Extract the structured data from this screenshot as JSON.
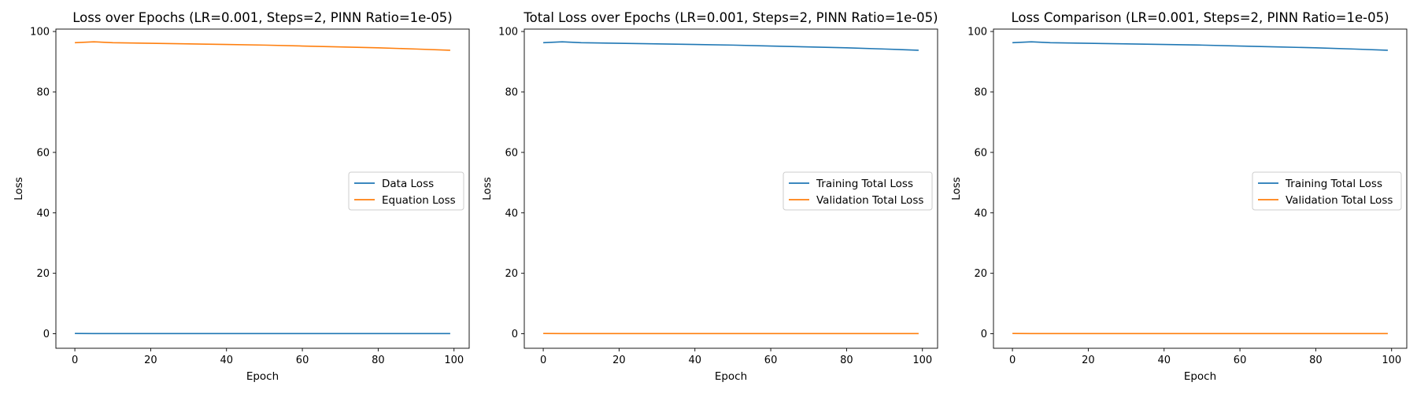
{
  "chart_data": [
    {
      "type": "line",
      "title": "Loss over Epochs (LR=0.001, Steps=2, PINN Ratio=1e-05)",
      "xlabel": "Epoch",
      "ylabel": "Loss",
      "xlim": [
        -5,
        104
      ],
      "ylim": [
        -4.8,
        100.8
      ],
      "xticks": [
        0,
        20,
        40,
        60,
        80,
        100
      ],
      "yticks": [
        0,
        20,
        40,
        60,
        80,
        100
      ],
      "grid": false,
      "legend": "center-right",
      "x": [
        0,
        5,
        10,
        20,
        30,
        40,
        50,
        60,
        70,
        80,
        90,
        99
      ],
      "series": [
        {
          "name": "Data Loss",
          "color": "#1f77b4",
          "values": [
            0.1,
            0.05,
            0.05,
            0.05,
            0.05,
            0.05,
            0.05,
            0.05,
            0.05,
            0.05,
            0.05,
            0.05
          ]
        },
        {
          "name": "Equation Loss",
          "color": "#ff7f0e",
          "values": [
            96.3,
            96.6,
            96.3,
            96.1,
            95.9,
            95.7,
            95.5,
            95.2,
            94.9,
            94.6,
            94.2,
            93.8
          ]
        }
      ]
    },
    {
      "type": "line",
      "title": "Total Loss over Epochs (LR=0.001, Steps=2, PINN Ratio=1e-05)",
      "xlabel": "Epoch",
      "ylabel": "Loss",
      "xlim": [
        -5,
        104
      ],
      "ylim": [
        -4.8,
        100.8
      ],
      "xticks": [
        0,
        20,
        40,
        60,
        80,
        100
      ],
      "yticks": [
        0,
        20,
        40,
        60,
        80,
        100
      ],
      "grid": false,
      "legend": "center-right",
      "x": [
        0,
        5,
        10,
        20,
        30,
        40,
        50,
        60,
        70,
        80,
        90,
        99
      ],
      "series": [
        {
          "name": "Training Total Loss",
          "color": "#1f77b4",
          "values": [
            96.3,
            96.6,
            96.3,
            96.1,
            95.9,
            95.7,
            95.5,
            95.2,
            94.9,
            94.6,
            94.2,
            93.8
          ]
        },
        {
          "name": "Validation Total Loss",
          "color": "#ff7f0e",
          "values": [
            0.1,
            0.05,
            0.05,
            0.05,
            0.05,
            0.05,
            0.05,
            0.05,
            0.05,
            0.05,
            0.05,
            0.05
          ]
        }
      ]
    },
    {
      "type": "line",
      "title": "Loss Comparison (LR=0.001, Steps=2, PINN Ratio=1e-05)",
      "xlabel": "Epoch",
      "ylabel": "Loss",
      "xlim": [
        -5,
        104
      ],
      "ylim": [
        -4.8,
        100.8
      ],
      "xticks": [
        0,
        20,
        40,
        60,
        80,
        100
      ],
      "yticks": [
        0,
        20,
        40,
        60,
        80,
        100
      ],
      "grid": false,
      "legend": "center-right",
      "x": [
        0,
        5,
        10,
        20,
        30,
        40,
        50,
        60,
        70,
        80,
        90,
        99
      ],
      "series": [
        {
          "name": "Training Total Loss",
          "color": "#1f77b4",
          "values": [
            96.3,
            96.6,
            96.3,
            96.1,
            95.9,
            95.7,
            95.5,
            95.2,
            94.9,
            94.6,
            94.2,
            93.8
          ]
        },
        {
          "name": "Validation Total Loss",
          "color": "#ff7f0e",
          "values": [
            0.1,
            0.05,
            0.05,
            0.05,
            0.05,
            0.05,
            0.05,
            0.05,
            0.05,
            0.05,
            0.05,
            0.05
          ]
        }
      ]
    }
  ]
}
